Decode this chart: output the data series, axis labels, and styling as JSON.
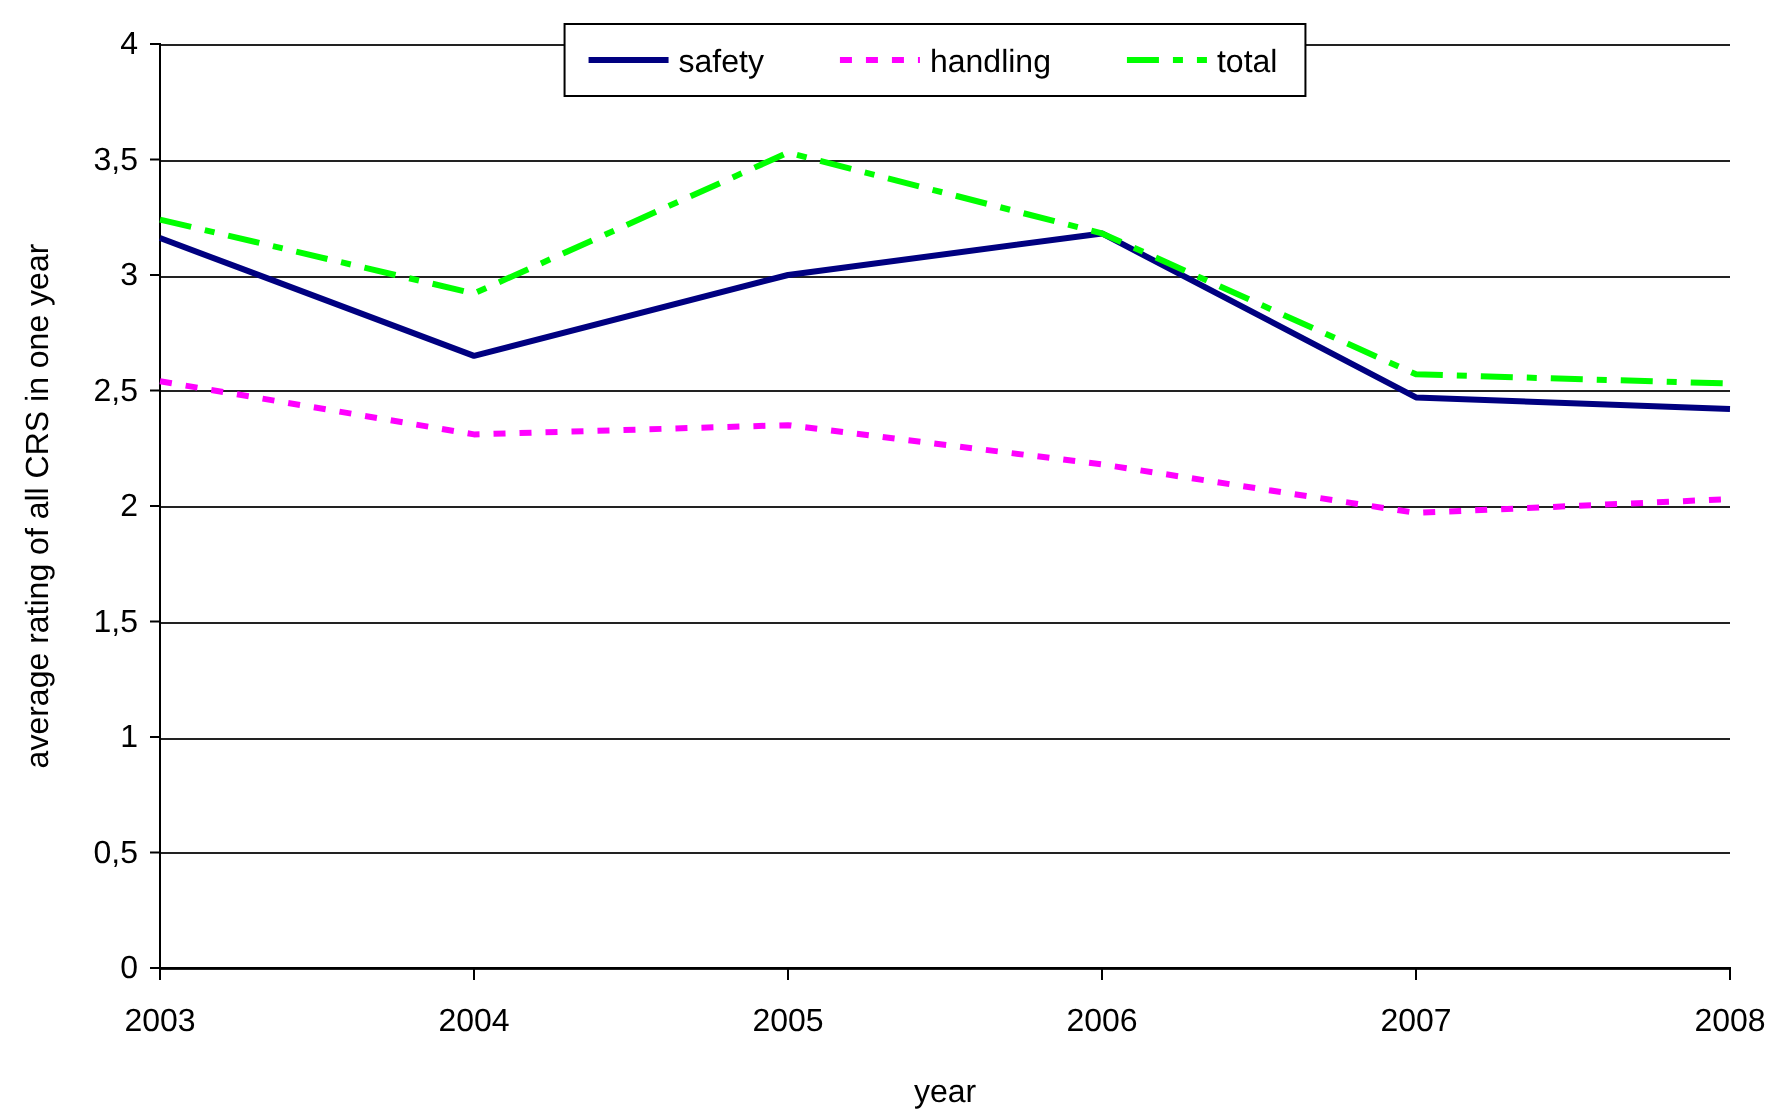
{
  "chart_data": {
    "type": "line",
    "xlabel": "year",
    "ylabel": "average rating of all CRS in one year",
    "x": [
      2003,
      2004,
      2005,
      2006,
      2007,
      2008
    ],
    "xlim": [
      2003,
      2008
    ],
    "xticks": [
      2003,
      2004,
      2005,
      2006,
      2007,
      2008
    ],
    "ylim": [
      0,
      4
    ],
    "yticks": [
      0,
      {
        "value": 0.5,
        "label": "0,5"
      },
      1,
      {
        "value": 1.5,
        "label": "1,5"
      },
      2,
      {
        "value": 2.5,
        "label": "2,5"
      },
      3,
      {
        "value": 3.5,
        "label": "3,5"
      },
      4
    ],
    "grid": "y",
    "legend": "top",
    "marker": "none",
    "series": [
      {
        "name": "safety",
        "color": "#000080",
        "line_style": "solid",
        "values": [
          3.16,
          2.65,
          3.0,
          3.18,
          2.47,
          2.42
        ]
      },
      {
        "name": "handling",
        "color": "#ff00ff",
        "line_style": "dotted",
        "values": [
          2.54,
          2.31,
          2.35,
          2.18,
          1.97,
          2.03
        ]
      },
      {
        "name": "total",
        "color": "#00ff00",
        "line_style": "dashed",
        "values": [
          3.24,
          2.92,
          3.53,
          3.18,
          2.57,
          2.53
        ]
      }
    ]
  }
}
